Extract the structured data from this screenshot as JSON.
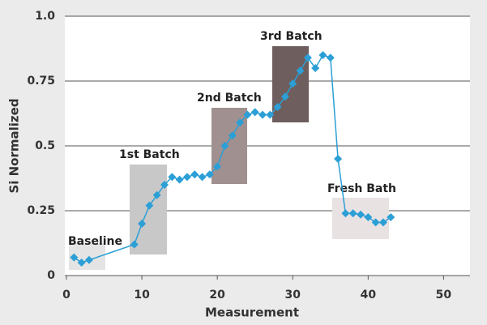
{
  "chart_data": {
    "type": "line",
    "x_label": "Measurement",
    "y_label": "Si Normalized",
    "x": [
      1,
      2,
      3,
      9,
      10,
      11,
      12,
      13,
      14,
      15,
      16,
      17,
      18,
      19,
      20,
      21,
      22,
      23,
      24,
      25,
      26,
      27,
      28,
      29,
      30,
      31,
      32,
      33,
      34,
      35,
      36,
      37,
      38,
      39,
      40,
      41,
      42,
      43
    ],
    "series": [
      {
        "color": "#2b9fd6",
        "values": [
          0.07,
          0.05,
          0.06,
          0.12,
          0.2,
          0.27,
          0.31,
          0.35,
          0.38,
          0.37,
          0.38,
          0.39,
          0.38,
          0.39,
          0.42,
          0.5,
          0.54,
          0.59,
          0.62,
          0.63,
          0.62,
          0.62,
          0.65,
          0.69,
          0.74,
          0.79,
          0.84,
          0.8,
          0.85,
          0.84,
          0.45,
          0.24,
          0.24,
          0.235,
          0.225,
          0.205,
          0.205,
          0.225
        ]
      }
    ],
    "annotations": [
      "Baseline",
      "1st Batch",
      "2nd Batch",
      "3rd Batch",
      "Fresh Bath"
    ],
    "xlim": [
      0,
      53.5
    ],
    "ylim": [
      0,
      1
    ],
    "xticks": [
      0,
      10,
      20,
      30,
      40,
      50
    ],
    "yticks": [
      0,
      0.25,
      0.5,
      0.75,
      {
        "value": 1,
        "label": "1.0"
      }
    ],
    "grid": true
  }
}
